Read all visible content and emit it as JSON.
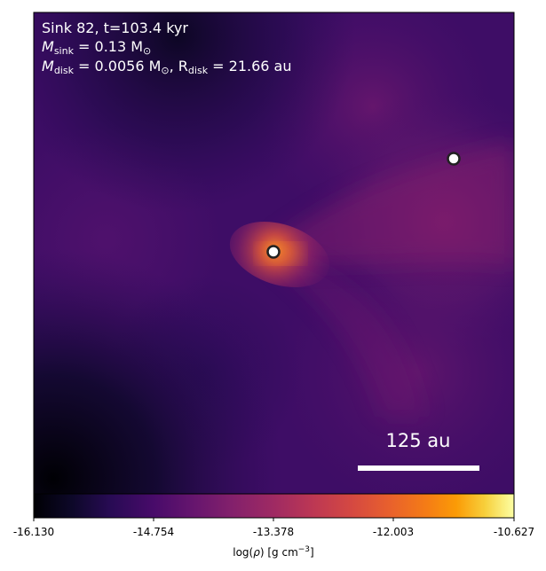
{
  "annotation": {
    "line1": "Sink 82, t=103.4 kyr",
    "line2_prefix": "M",
    "line2_sub": "sink",
    "line2_value": " = 0.13 M",
    "line2_unit_sub": "⊙",
    "line3_prefix": "M",
    "line3_sub": "disk",
    "line3_value": " = 0.0056 M",
    "line3_unit_sub": "⊙",
    "line3_sep": ", R",
    "line3_rsub": "disk",
    "line3_rvalue": " = 21.66 au"
  },
  "scale_bar": {
    "label": "125 au"
  },
  "colorbar": {
    "tick_labels": [
      "-16.130",
      "-14.754",
      "-13.378",
      "-12.003",
      "-10.627"
    ],
    "min": -16.13,
    "max": -10.627,
    "label_prefix": "log(",
    "label_rho": "ρ",
    "label_suffix": ") [g cm",
    "label_exp": "−3",
    "label_close": "]",
    "colormap": "inferno"
  },
  "sinks": [
    {
      "name": "sink-primary"
    },
    {
      "name": "sink-secondary"
    }
  ],
  "colors": {
    "background_dark": "#08061a",
    "disk_core": "#f07a2a",
    "marker_fill": "#ffffff",
    "marker_edge": "#2a2a2a"
  }
}
